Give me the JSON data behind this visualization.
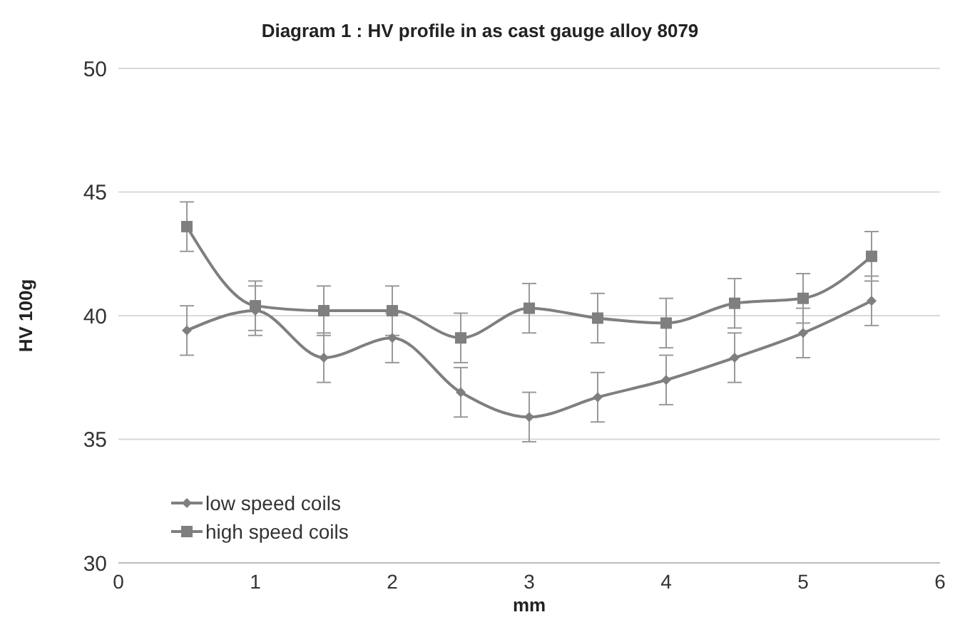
{
  "chart_data": {
    "type": "line",
    "title": "Diagram 1 : HV profile in as cast gauge alloy 8079",
    "xlabel": "mm",
    "ylabel": "HV 100g",
    "x": [
      0.5,
      1,
      1.5,
      2,
      2.5,
      3,
      3.5,
      4,
      4.5,
      5,
      5.5
    ],
    "series": [
      {
        "name": "low speed coils",
        "color": "#7f7f7f",
        "marker": "diamond",
        "values": [
          39.4,
          40.2,
          38.3,
          39.1,
          36.9,
          35.9,
          36.7,
          37.4,
          38.3,
          39.3,
          40.6
        ],
        "errors": [
          1,
          1,
          1,
          1,
          1,
          1,
          1,
          1,
          1,
          1,
          1
        ]
      },
      {
        "name": "high speed coils",
        "color": "#7f7f7f",
        "marker": "square",
        "values": [
          43.6,
          40.4,
          40.2,
          40.2,
          39.1,
          40.3,
          39.9,
          39.7,
          40.5,
          40.7,
          42.4
        ],
        "errors": [
          1,
          1,
          1,
          1,
          1,
          1,
          1,
          1,
          1,
          1,
          1
        ]
      }
    ],
    "xlim": [
      0,
      6
    ],
    "xticks": [
      0,
      1,
      2,
      3,
      4,
      5,
      6
    ],
    "ylim": [
      30,
      50
    ],
    "yticks": [
      30,
      35,
      40,
      45,
      50
    ],
    "grid": "y",
    "legend": "bottom left"
  }
}
